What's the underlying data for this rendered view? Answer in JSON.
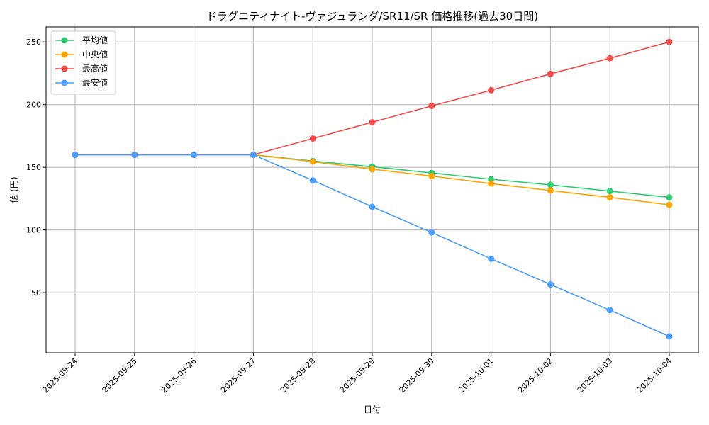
{
  "chart_data": {
    "type": "line",
    "title": "ドラグニティナイト-ヴァジュランダ/SR11/SR 価格推移(過去30日間)",
    "xlabel": "日付",
    "ylabel": "値 (円)",
    "categories": [
      "2025-09-24",
      "2025-09-25",
      "2025-09-26",
      "2025-09-27",
      "2025-09-28",
      "2025-09-29",
      "2025-09-30",
      "2025-10-01",
      "2025-10-02",
      "2025-10-03",
      "2025-10-04"
    ],
    "ylim": [
      2,
      262
    ],
    "yticks": [
      50,
      100,
      150,
      200,
      250
    ],
    "grid": true,
    "legend_position": "top-left",
    "series": [
      {
        "name": "平均値",
        "color": "#2ecc71",
        "values": [
          160,
          160,
          160,
          160,
          155,
          150.5,
          145.5,
          140.5,
          136,
          131,
          126
        ]
      },
      {
        "name": "中央値",
        "color": "#ffa500",
        "values": [
          160,
          160,
          160,
          160,
          154.5,
          148.5,
          143,
          137,
          131.5,
          126,
          120
        ]
      },
      {
        "name": "最高値",
        "color": "#f44b4b",
        "values": [
          160,
          160,
          160,
          160,
          173,
          186,
          199,
          211.5,
          224.5,
          237,
          250
        ]
      },
      {
        "name": "最安値",
        "color": "#4a9eff",
        "values": [
          160,
          160,
          160,
          160,
          139.5,
          118.5,
          98,
          77,
          56.5,
          36,
          15
        ]
      }
    ]
  }
}
